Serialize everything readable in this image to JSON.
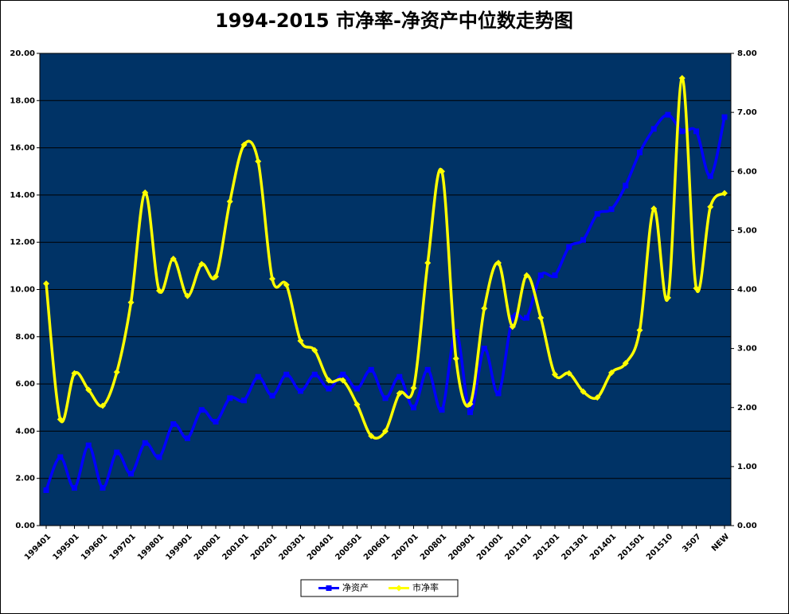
{
  "chart_data": {
    "type": "line",
    "title": "1994-2015 市净率-净资产中位数走势图",
    "categories": [
      "199401",
      null,
      "199501",
      null,
      "199601",
      null,
      "199701",
      null,
      "199801",
      null,
      "199901",
      null,
      "200001",
      null,
      "200101",
      null,
      "200201",
      null,
      "200301",
      null,
      "200401",
      null,
      "200501",
      null,
      "200601",
      null,
      "200701",
      null,
      "200801",
      null,
      "200901",
      null,
      "201001",
      null,
      "201101",
      null,
      "201201",
      null,
      "201301",
      null,
      "201401",
      null,
      "201501",
      null,
      "201510",
      null,
      "3507",
      null,
      "NEW"
    ],
    "series": [
      {
        "name": "净资产",
        "color": "#0000ff",
        "axis": "y",
        "marker": "square",
        "values": [
          1.5,
          2.9,
          1.6,
          3.4,
          1.6,
          3.1,
          2.2,
          3.5,
          2.9,
          4.3,
          3.7,
          4.9,
          4.4,
          5.4,
          5.3,
          6.3,
          5.5,
          6.4,
          5.7,
          6.4,
          5.8,
          6.4,
          5.8,
          6.6,
          5.4,
          6.3,
          5.0,
          6.6,
          4.9,
          8.2,
          4.8,
          7.5,
          5.6,
          8.8,
          8.8,
          10.6,
          10.6,
          11.8,
          12.1,
          13.2,
          13.4,
          14.4,
          15.8,
          16.8,
          17.4,
          16.7,
          16.7,
          14.8,
          17.3
        ]
      },
      {
        "name": "市净率",
        "color": "#ffff00",
        "axis": "y2",
        "marker": "diamond",
        "values": [
          4.1,
          1.8,
          2.58,
          2.3,
          2.03,
          2.6,
          3.78,
          5.64,
          3.98,
          4.52,
          3.89,
          4.43,
          4.22,
          5.49,
          6.45,
          6.17,
          4.18,
          4.08,
          3.13,
          2.97,
          2.46,
          2.46,
          2.05,
          1.52,
          1.6,
          2.24,
          2.33,
          4.45,
          6.0,
          2.83,
          2.06,
          3.68,
          4.45,
          3.37,
          4.24,
          3.52,
          2.56,
          2.58,
          2.27,
          2.17,
          2.59,
          2.75,
          3.31,
          5.37,
          3.86,
          7.58,
          4.02,
          5.4,
          5.63
        ]
      }
    ],
    "ylim": [
      0,
      20
    ],
    "yticks": [
      {
        "value": 0,
        "label": "0.00"
      },
      {
        "value": 2,
        "label": "2.00"
      },
      {
        "value": 4,
        "label": "4.00"
      },
      {
        "value": 6,
        "label": "6.00"
      },
      {
        "value": 8,
        "label": "8.00"
      },
      {
        "value": 10,
        "label": "10.00"
      },
      {
        "value": 12,
        "label": "12.00"
      },
      {
        "value": 14,
        "label": "14.00"
      },
      {
        "value": 16,
        "label": "16.00"
      },
      {
        "value": 18,
        "label": "18.00"
      },
      {
        "value": 20,
        "label": "20.00"
      }
    ],
    "y2lim": [
      0,
      8
    ],
    "y2ticks": [
      {
        "value": 0,
        "label": "0.00"
      },
      {
        "value": 1,
        "label": "1.00"
      },
      {
        "value": 2,
        "label": "2.00"
      },
      {
        "value": 3,
        "label": "3.00"
      },
      {
        "value": 4,
        "label": "4.00"
      },
      {
        "value": 5,
        "label": "5.00"
      },
      {
        "value": 6,
        "label": "6.00"
      },
      {
        "value": 7,
        "label": "7.00"
      },
      {
        "value": 8,
        "label": "8.00"
      }
    ],
    "grid": true,
    "smooth": true,
    "plot_background": "#003366",
    "legend": "bottom"
  }
}
